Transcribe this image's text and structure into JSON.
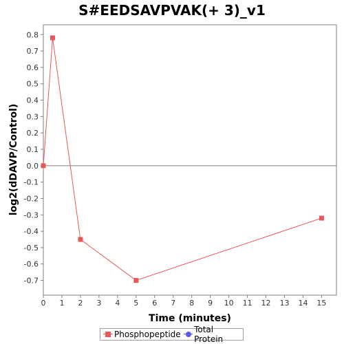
{
  "chart_data": {
    "type": "line",
    "title": "S#EEDSAVPVAK(+ 3)_v1",
    "xlabel": "Time (minutes)",
    "ylabel": "log2(dDAVP/Control)",
    "xlim": [
      0,
      15.8
    ],
    "ylim": [
      -0.79,
      0.86
    ],
    "x_ticks": [
      "0",
      "1",
      "2",
      "3",
      "4",
      "5",
      "6",
      "7",
      "8",
      "9",
      "10",
      "11",
      "12",
      "13",
      "14",
      "15"
    ],
    "y_ticks": [
      "0.8",
      "0.7",
      "0.6",
      "0.5",
      "0.4",
      "0.3",
      "0.2",
      "0.1",
      "0.0",
      "-0.1",
      "-0.2",
      "-0.3",
      "-0.4",
      "-0.5",
      "-0.6",
      "-0.7"
    ],
    "zero_line": true,
    "grid": false,
    "legend_position": "bottom",
    "series": [
      {
        "name": "Phosphopeptide",
        "color": "#e8585a",
        "marker": "square",
        "x": [
          0,
          0.5,
          2,
          5,
          15
        ],
        "y": [
          0.0,
          0.78,
          -0.45,
          -0.7,
          -0.32
        ]
      },
      {
        "name": "Total Protein",
        "color": "#5a5ae8",
        "marker": "circle",
        "x": [],
        "y": []
      }
    ]
  }
}
